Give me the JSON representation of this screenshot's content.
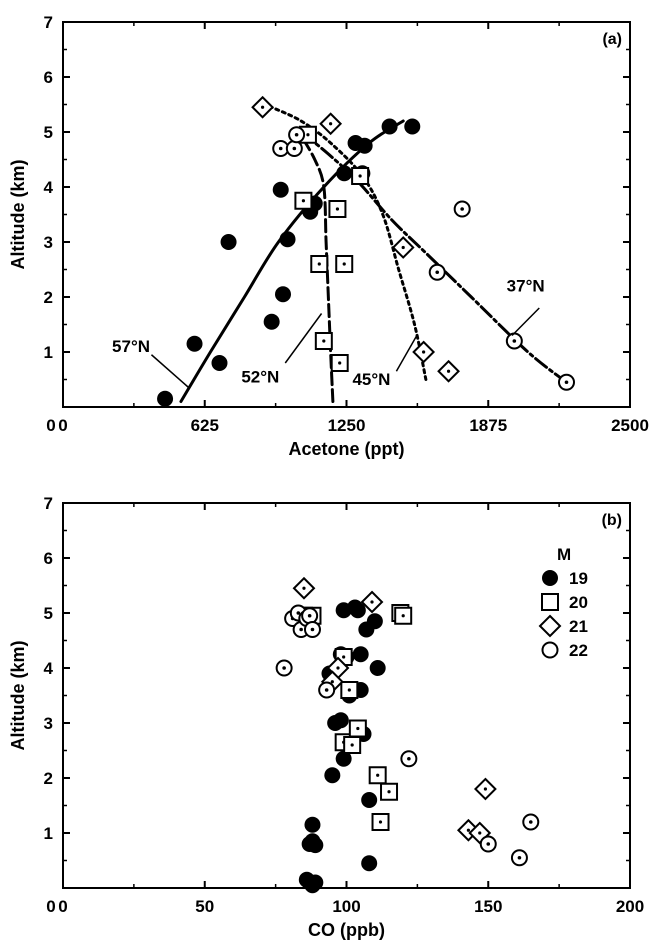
{
  "chart_data": [
    {
      "type": "scatter",
      "panel_label": "(a)",
      "xlabel": "Acetone (ppt)",
      "ylabel": "Altitude (km)",
      "xlim": [
        0,
        2500
      ],
      "ylim": [
        0,
        7
      ],
      "xticks": [
        0,
        625,
        1250,
        1875,
        2500
      ],
      "yticks": [
        1,
        2,
        3,
        4,
        5,
        6,
        7
      ],
      "series": [
        {
          "marker": "filled-circle",
          "points": [
            [
              450,
              0.15
            ],
            [
              580,
              1.15
            ],
            [
              690,
              0.8
            ],
            [
              730,
              3.0
            ],
            [
              920,
              1.55
            ],
            [
              960,
              3.95
            ],
            [
              970,
              2.05
            ],
            [
              990,
              3.05
            ],
            [
              1090,
              3.55
            ],
            [
              1110,
              3.7
            ],
            [
              1240,
              4.25
            ],
            [
              1290,
              4.8
            ],
            [
              1320,
              4.25
            ],
            [
              1330,
              4.75
            ],
            [
              1440,
              5.1
            ],
            [
              1540,
              5.1
            ]
          ]
        },
        {
          "marker": "open-square",
          "points": [
            [
              1080,
              4.95
            ],
            [
              1060,
              3.75
            ],
            [
              1130,
              2.6
            ],
            [
              1150,
              1.2
            ],
            [
              1210,
              3.6
            ],
            [
              1220,
              0.8
            ],
            [
              1240,
              2.6
            ],
            [
              1310,
              4.2
            ]
          ]
        },
        {
          "marker": "open-diamond",
          "points": [
            [
              880,
              5.45
            ],
            [
              1180,
              5.15
            ],
            [
              1500,
              2.9
            ],
            [
              1590,
              1.0
            ],
            [
              1700,
              0.65
            ]
          ]
        },
        {
          "marker": "open-circle",
          "points": [
            [
              960,
              4.7
            ],
            [
              1020,
              4.7
            ],
            [
              1030,
              4.95
            ],
            [
              1650,
              2.45
            ],
            [
              1760,
              3.6
            ],
            [
              1990,
              1.2
            ],
            [
              2220,
              0.45
            ]
          ]
        }
      ],
      "curves": [
        {
          "label": "57°N",
          "style": "solid",
          "points": [
            [
              520,
              0.1
            ],
            [
              650,
              1.0
            ],
            [
              800,
              2.0
            ],
            [
              950,
              3.0
            ],
            [
              1150,
              4.0
            ],
            [
              1350,
              4.8
            ],
            [
              1500,
              5.2
            ]
          ]
        },
        {
          "label": "52°N",
          "style": "dash",
          "points": [
            [
              1190,
              0.1
            ],
            [
              1180,
              1.0
            ],
            [
              1170,
              2.0
            ],
            [
              1160,
              3.0
            ],
            [
              1150,
              4.0
            ],
            [
              1110,
              4.5
            ],
            [
              1040,
              5.0
            ]
          ]
        },
        {
          "label": "45°N",
          "style": "dot",
          "points": [
            [
              1600,
              0.5
            ],
            [
              1550,
              1.5
            ],
            [
              1480,
              2.5
            ],
            [
              1410,
              3.5
            ],
            [
              1320,
              4.2
            ],
            [
              1180,
              4.8
            ],
            [
              1050,
              5.2
            ],
            [
              920,
              5.45
            ]
          ]
        },
        {
          "label": "37°N",
          "style": "long-dash-dot",
          "points": [
            [
              2220,
              0.45
            ],
            [
              2050,
              1.0
            ],
            [
              1800,
              2.0
            ],
            [
              1600,
              2.8
            ],
            [
              1450,
              3.4
            ],
            [
              1300,
              4.1
            ],
            [
              1170,
              4.6
            ],
            [
              1050,
              5.0
            ]
          ]
        }
      ]
    },
    {
      "type": "scatter",
      "panel_label": "(b)",
      "xlabel": "CO (ppb)",
      "ylabel": "Altitude (km)",
      "xlim": [
        0,
        200
      ],
      "ylim": [
        0,
        7
      ],
      "xticks": [
        0,
        50,
        100,
        150,
        200
      ],
      "yticks": [
        1,
        2,
        3,
        4,
        5,
        6,
        7
      ],
      "legend_title": "M",
      "legend_position": "right",
      "series": [
        {
          "name": "19",
          "marker": "filled-circle",
          "points": [
            [
              86,
              0.15
            ],
            [
              87,
              0.1
            ],
            [
              88,
              0.05
            ],
            [
              89,
              0.1
            ],
            [
              87,
              0.8
            ],
            [
              88,
              0.85
            ],
            [
              89,
              0.78
            ],
            [
              88,
              1.15
            ],
            [
              95,
              2.05
            ],
            [
              99,
              2.35
            ],
            [
              96,
              3.0
            ],
            [
              98,
              3.05
            ],
            [
              98,
              4.25
            ],
            [
              100,
              4.2
            ],
            [
              94,
              3.9
            ],
            [
              101,
              3.5
            ],
            [
              103,
              3.6
            ],
            [
              99,
              5.05
            ],
            [
              103,
              5.1
            ],
            [
              104,
              5.05
            ],
            [
              107,
              4.7
            ],
            [
              110,
              4.85
            ],
            [
              111,
              4.0
            ],
            [
              105,
              3.6
            ],
            [
              105,
              4.25
            ],
            [
              106,
              2.8
            ],
            [
              108,
              1.6
            ],
            [
              108,
              0.45
            ]
          ]
        },
        {
          "name": "20",
          "marker": "open-square",
          "points": [
            [
              85,
              4.95
            ],
            [
              88,
              4.95
            ],
            [
              99,
              4.2
            ],
            [
              101,
              3.6
            ],
            [
              99,
              2.65
            ],
            [
              102,
              2.6
            ],
            [
              104,
              2.9
            ],
            [
              111,
              2.05
            ],
            [
              112,
              1.2
            ],
            [
              115,
              1.75
            ],
            [
              119,
              5.0
            ],
            [
              120,
              4.95
            ]
          ]
        },
        {
          "name": "21",
          "marker": "open-diamond",
          "points": [
            [
              85,
              5.45
            ],
            [
              109,
              5.2
            ],
            [
              97,
              4.0
            ],
            [
              95,
              3.75
            ],
            [
              143,
              1.05
            ],
            [
              147,
              1.0
            ],
            [
              149,
              1.8
            ]
          ]
        },
        {
          "name": "22",
          "marker": "open-circle",
          "points": [
            [
              78,
              4.0
            ],
            [
              81,
              4.9
            ],
            [
              83,
              5.0
            ],
            [
              84,
              4.7
            ],
            [
              86,
              4.9
            ],
            [
              87,
              4.95
            ],
            [
              88,
              4.7
            ],
            [
              93,
              3.6
            ],
            [
              122,
              2.35
            ],
            [
              150,
              0.8
            ],
            [
              161,
              0.55
            ],
            [
              165,
              1.2
            ]
          ]
        }
      ]
    }
  ]
}
